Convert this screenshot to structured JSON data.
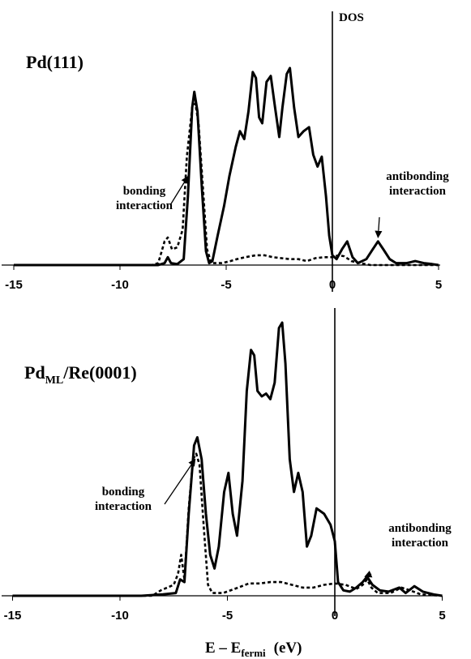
{
  "chart_data": [
    {
      "type": "line",
      "title": "Pd(111)",
      "xlim": [
        -15,
        5
      ],
      "ylim": [
        0,
        1
      ],
      "xticks": [
        "-15",
        "-10",
        "-5",
        "0",
        "5"
      ],
      "vertical_line_label": "DOS",
      "series": [
        {
          "style": "solid",
          "points": [
            [
              -15,
              0
            ],
            [
              -9,
              0
            ],
            [
              -8.2,
              0
            ],
            [
              -7.9,
              0.01
            ],
            [
              -7.75,
              0.04
            ],
            [
              -7.6,
              0.01
            ],
            [
              -7.3,
              0.005
            ],
            [
              -7.0,
              0.03
            ],
            [
              -6.8,
              0.35
            ],
            [
              -6.6,
              0.8
            ],
            [
              -6.5,
              0.88
            ],
            [
              -6.35,
              0.78
            ],
            [
              -6.15,
              0.4
            ],
            [
              -5.95,
              0.07
            ],
            [
              -5.8,
              0.01
            ],
            [
              -5.65,
              0.02
            ],
            [
              -5.4,
              0.15
            ],
            [
              -5.1,
              0.3
            ],
            [
              -4.85,
              0.45
            ],
            [
              -4.55,
              0.6
            ],
            [
              -4.35,
              0.68
            ],
            [
              -4.15,
              0.64
            ],
            [
              -3.95,
              0.78
            ],
            [
              -3.75,
              0.98
            ],
            [
              -3.6,
              0.95
            ],
            [
              -3.45,
              0.75
            ],
            [
              -3.3,
              0.72
            ],
            [
              -3.1,
              0.93
            ],
            [
              -2.9,
              0.96
            ],
            [
              -2.7,
              0.8
            ],
            [
              -2.5,
              0.65
            ],
            [
              -2.35,
              0.8
            ],
            [
              -2.15,
              0.97
            ],
            [
              -2.0,
              1.0
            ],
            [
              -1.8,
              0.8
            ],
            [
              -1.6,
              0.65
            ],
            [
              -1.35,
              0.68
            ],
            [
              -1.1,
              0.7
            ],
            [
              -0.9,
              0.56
            ],
            [
              -0.7,
              0.5
            ],
            [
              -0.5,
              0.55
            ],
            [
              -0.3,
              0.35
            ],
            [
              -0.15,
              0.15
            ],
            [
              0.0,
              0.05
            ],
            [
              0.2,
              0.03
            ],
            [
              0.45,
              0.08
            ],
            [
              0.7,
              0.12
            ],
            [
              0.95,
              0.04
            ],
            [
              1.2,
              0.01
            ],
            [
              1.6,
              0.03
            ],
            [
              1.9,
              0.08
            ],
            [
              2.15,
              0.12
            ],
            [
              2.4,
              0.08
            ],
            [
              2.7,
              0.03
            ],
            [
              3.0,
              0.01
            ],
            [
              3.5,
              0.01
            ],
            [
              3.9,
              0.02
            ],
            [
              4.3,
              0.01
            ],
            [
              4.7,
              0.005
            ],
            [
              5,
              0.0
            ]
          ]
        },
        {
          "style": "dashed",
          "points": [
            [
              -15,
              0
            ],
            [
              -8.5,
              0
            ],
            [
              -8.2,
              0.01
            ],
            [
              -7.9,
              0.12
            ],
            [
              -7.75,
              0.14
            ],
            [
              -7.55,
              0.08
            ],
            [
              -7.3,
              0.09
            ],
            [
              -7.05,
              0.18
            ],
            [
              -6.85,
              0.55
            ],
            [
              -6.6,
              0.8
            ],
            [
              -6.45,
              0.82
            ],
            [
              -6.3,
              0.72
            ],
            [
              -6.1,
              0.4
            ],
            [
              -5.9,
              0.08
            ],
            [
              -5.7,
              0.01
            ],
            [
              -5.2,
              0.01
            ],
            [
              -4.8,
              0.02
            ],
            [
              -4.5,
              0.03
            ],
            [
              -4.1,
              0.04
            ],
            [
              -3.6,
              0.05
            ],
            [
              -3.2,
              0.05
            ],
            [
              -2.8,
              0.04
            ],
            [
              -2.4,
              0.035
            ],
            [
              -2.0,
              0.03
            ],
            [
              -1.6,
              0.03
            ],
            [
              -1.2,
              0.02
            ],
            [
              -0.8,
              0.035
            ],
            [
              -0.4,
              0.04
            ],
            [
              0.0,
              0.04
            ],
            [
              0.3,
              0.05
            ],
            [
              0.55,
              0.045
            ],
            [
              0.9,
              0.02
            ],
            [
              1.3,
              0.01
            ],
            [
              1.8,
              0.0
            ],
            [
              5,
              0
            ]
          ]
        }
      ],
      "annotations": [
        {
          "text": [
            "bonding",
            "interaction"
          ],
          "points_to": [
            -6.8,
            0.45
          ]
        },
        {
          "text": [
            "antibonding",
            "interaction"
          ],
          "points_to": [
            2.15,
            0.14
          ]
        }
      ]
    },
    {
      "type": "line",
      "title_main": "Pd",
      "title_sub": "ML",
      "title_rest": "/Re(0001)",
      "xlim": [
        -15,
        5
      ],
      "ylim": [
        0,
        1
      ],
      "xticks": [
        "-15",
        "-10",
        "-5",
        "0",
        "5"
      ],
      "xlabel_main": "E – E",
      "xlabel_sub": "fermi",
      "xlabel_unit": "(eV)",
      "series": [
        {
          "style": "solid",
          "points": [
            [
              -15,
              0
            ],
            [
              -9,
              0
            ],
            [
              -8,
              0.005
            ],
            [
              -7.4,
              0.01
            ],
            [
              -7.2,
              0.06
            ],
            [
              -7.0,
              0.05
            ],
            [
              -6.8,
              0.3
            ],
            [
              -6.55,
              0.55
            ],
            [
              -6.4,
              0.58
            ],
            [
              -6.2,
              0.5
            ],
            [
              -6.0,
              0.3
            ],
            [
              -5.8,
              0.15
            ],
            [
              -5.6,
              0.1
            ],
            [
              -5.4,
              0.18
            ],
            [
              -5.15,
              0.38
            ],
            [
              -4.95,
              0.45
            ],
            [
              -4.75,
              0.3
            ],
            [
              -4.55,
              0.22
            ],
            [
              -4.3,
              0.42
            ],
            [
              -4.1,
              0.75
            ],
            [
              -3.9,
              0.9
            ],
            [
              -3.75,
              0.88
            ],
            [
              -3.6,
              0.75
            ],
            [
              -3.4,
              0.73
            ],
            [
              -3.2,
              0.74
            ],
            [
              -3.0,
              0.72
            ],
            [
              -2.8,
              0.78
            ],
            [
              -2.6,
              0.98
            ],
            [
              -2.45,
              1.0
            ],
            [
              -2.3,
              0.85
            ],
            [
              -2.1,
              0.5
            ],
            [
              -1.9,
              0.38
            ],
            [
              -1.7,
              0.45
            ],
            [
              -1.5,
              0.38
            ],
            [
              -1.3,
              0.18
            ],
            [
              -1.1,
              0.22
            ],
            [
              -0.85,
              0.32
            ],
            [
              -0.5,
              0.3
            ],
            [
              -0.2,
              0.26
            ],
            [
              0.0,
              0.2
            ],
            [
              0.15,
              0.05
            ],
            [
              0.4,
              0.02
            ],
            [
              0.7,
              0.015
            ],
            [
              1.0,
              0.03
            ],
            [
              1.3,
              0.05
            ],
            [
              1.5,
              0.07
            ],
            [
              1.75,
              0.04
            ],
            [
              2.1,
              0.02
            ],
            [
              2.5,
              0.015
            ],
            [
              3.0,
              0.03
            ],
            [
              3.3,
              0.01
            ],
            [
              3.7,
              0.035
            ],
            [
              4.1,
              0.015
            ],
            [
              4.6,
              0.005
            ],
            [
              5,
              0.0
            ]
          ]
        },
        {
          "style": "dashed",
          "points": [
            [
              -15,
              0
            ],
            [
              -8.5,
              0
            ],
            [
              -8.1,
              0.02
            ],
            [
              -7.8,
              0.03
            ],
            [
              -7.5,
              0.04
            ],
            [
              -7.3,
              0.08
            ],
            [
              -7.15,
              0.15
            ],
            [
              -7.0,
              0.06
            ],
            [
              -6.8,
              0.32
            ],
            [
              -6.6,
              0.5
            ],
            [
              -6.45,
              0.52
            ],
            [
              -6.3,
              0.48
            ],
            [
              -6.1,
              0.25
            ],
            [
              -5.9,
              0.04
            ],
            [
              -5.7,
              0.01
            ],
            [
              -5.2,
              0.01
            ],
            [
              -4.5,
              0.03
            ],
            [
              -4.0,
              0.045
            ],
            [
              -3.5,
              0.045
            ],
            [
              -3.0,
              0.05
            ],
            [
              -2.5,
              0.05
            ],
            [
              -2.0,
              0.04
            ],
            [
              -1.5,
              0.03
            ],
            [
              -1.0,
              0.03
            ],
            [
              -0.5,
              0.04
            ],
            [
              0.0,
              0.045
            ],
            [
              0.5,
              0.04
            ],
            [
              1.0,
              0.025
            ],
            [
              1.3,
              0.04
            ],
            [
              1.5,
              0.06
            ],
            [
              1.7,
              0.03
            ],
            [
              2.0,
              0.01
            ],
            [
              2.6,
              0.01
            ],
            [
              3.1,
              0.03
            ],
            [
              3.5,
              0.02
            ],
            [
              4.0,
              0.005
            ],
            [
              5,
              0
            ]
          ]
        }
      ],
      "annotations": [
        {
          "text": [
            "bonding",
            "interaction"
          ],
          "points_to": [
            -6.5,
            0.5
          ]
        },
        {
          "text": [
            "antibonding",
            "interaction"
          ],
          "points_to": [
            1.4,
            0.07
          ]
        }
      ]
    }
  ]
}
